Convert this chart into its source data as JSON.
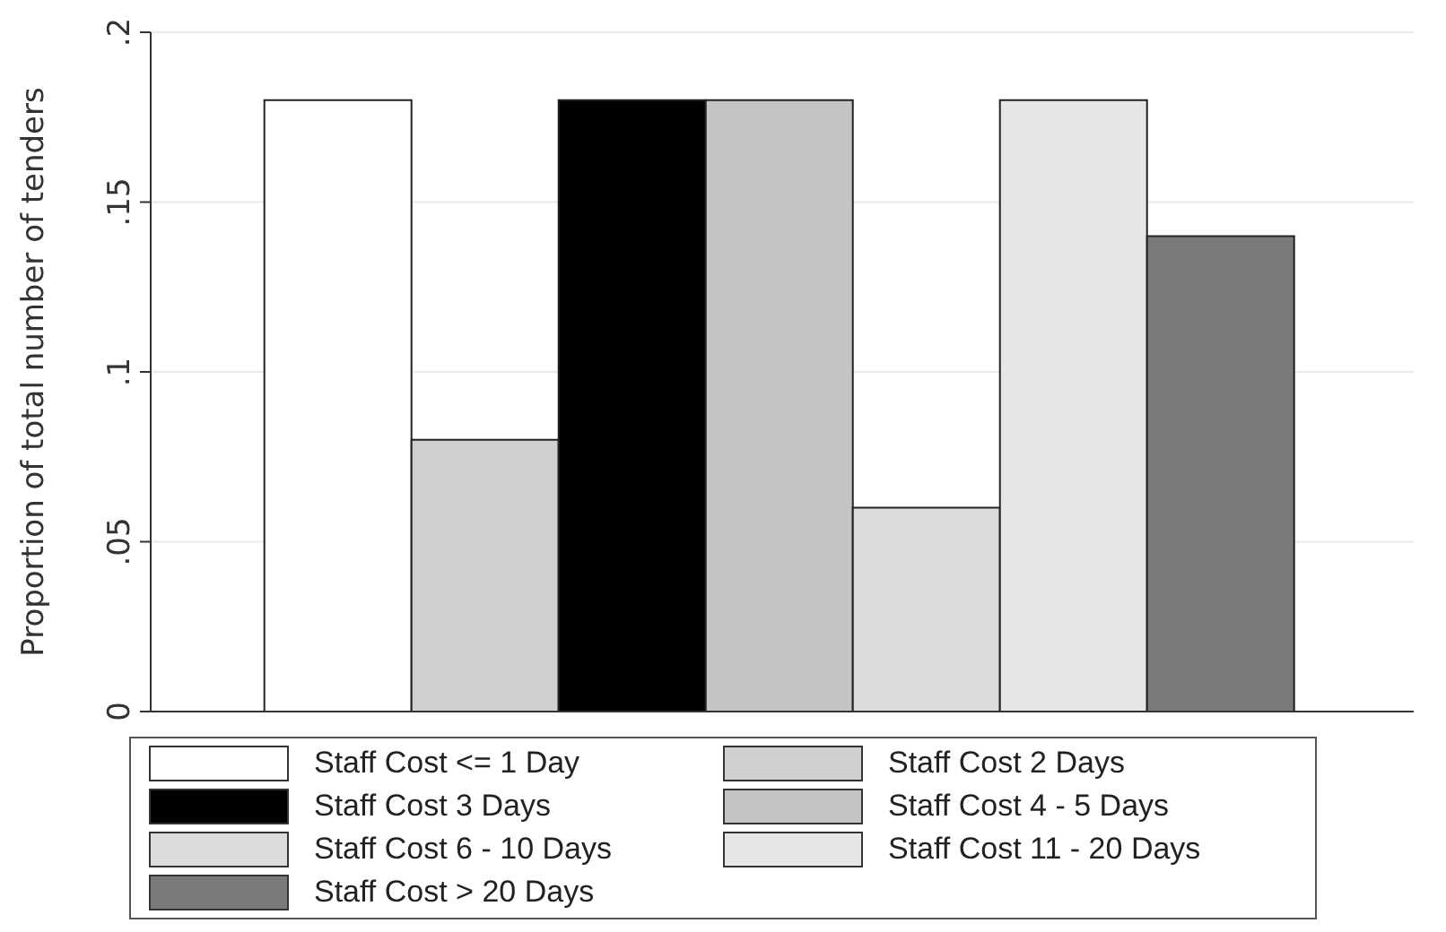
{
  "chart_data": {
    "type": "bar",
    "ylabel": "Proportion of total number of tenders",
    "categories": [
      null
    ],
    "series": [
      {
        "name": "Staff Cost <= 1 Day",
        "color": "#ffffff",
        "values": [
          0.18
        ]
      },
      {
        "name": "Staff Cost 2 Days",
        "color": "#d0d0d0",
        "values": [
          0.08
        ]
      },
      {
        "name": "Staff Cost 3 Days",
        "color": "#000000",
        "values": [
          0.18
        ]
      },
      {
        "name": "Staff Cost 4 - 5 Days",
        "color": "#c4c4c4",
        "values": [
          0.18
        ]
      },
      {
        "name": "Staff Cost 6 - 10 Days",
        "color": "#dcdcdc",
        "values": [
          0.06
        ]
      },
      {
        "name": "Staff Cost 11 - 20 Days",
        "color": "#e6e6e6",
        "values": [
          0.18
        ]
      },
      {
        "name": "Staff Cost > 20 Days",
        "color": "#7a7a7a",
        "values": [
          0.14
        ]
      }
    ],
    "ylim": [
      0,
      0.2
    ],
    "yticks": [
      {
        "value": 0,
        "label": "0"
      },
      {
        "value": 0.05,
        "label": ".05"
      },
      {
        "value": 0.1,
        "label": ".1"
      },
      {
        "value": 0.15,
        "label": ".15"
      },
      {
        "value": 0.2,
        "label": ".2"
      }
    ],
    "grid": "y",
    "legend": "bottom"
  }
}
